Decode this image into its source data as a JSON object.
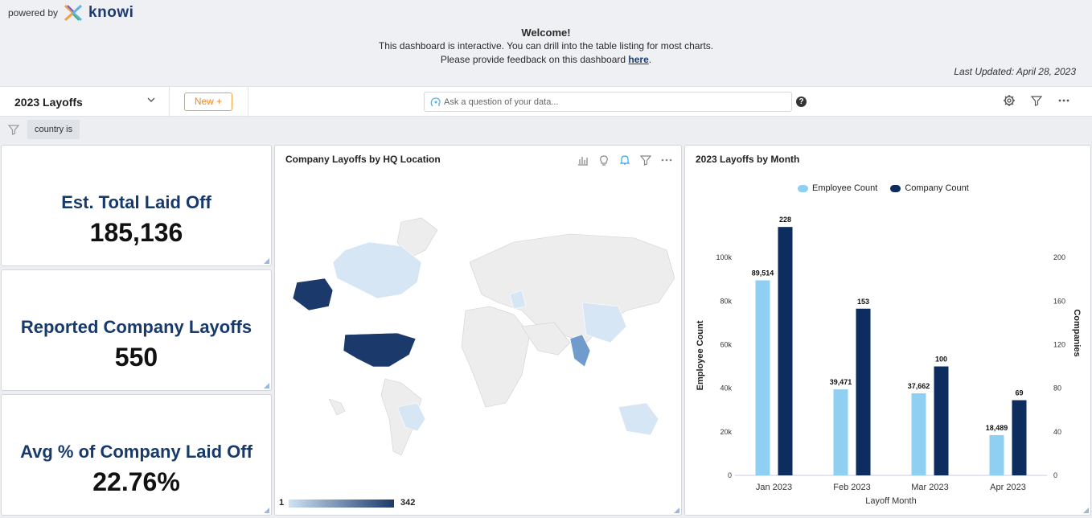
{
  "header": {
    "powered_by": "powered by",
    "brand": "knowi",
    "welcome_title": "Welcome!",
    "welcome_line1": "This dashboard is interactive. You can drill into the table listing for most charts.",
    "welcome_line2_prefix": "Please provide feedback on this dashboard",
    "welcome_link": "here",
    "welcome_line2_suffix": ".",
    "last_updated": "Last Updated: April 28, 2023"
  },
  "toolbar": {
    "dashboard_name": "2023 Layoffs",
    "new_button": "New +",
    "ask_placeholder": "Ask a question of your data...",
    "help": "?"
  },
  "filters": {
    "chip": "country is"
  },
  "kpis": [
    {
      "label": "Est. Total Laid Off",
      "value": "185,136"
    },
    {
      "label": "Reported Company Layoffs",
      "value": "550"
    },
    {
      "label": "Avg % of Company Laid Off",
      "value": "22.76%"
    }
  ],
  "map_panel": {
    "title": "Company Layoffs by HQ Location",
    "scale_min": "1",
    "scale_max": "342",
    "colors": {
      "low": "#cfe2f4",
      "mid": "#6f9ccd",
      "high": "#1b3a6b",
      "none": "#ededed"
    }
  },
  "chart_panel": {
    "title": "2023 Layoffs by Month"
  },
  "chart_data": {
    "type": "bar",
    "title": "2023 Layoffs by Month",
    "categories": [
      "Jan 2023",
      "Feb 2023",
      "Mar 2023",
      "Apr 2023"
    ],
    "xlabel": "Layoff Month",
    "ylabel": "Employee Count",
    "y2label": "Companies",
    "ylim": [
      0,
      110000
    ],
    "y2lim": [
      0,
      220
    ],
    "y_ticks": [
      "0",
      "20k",
      "40k",
      "60k",
      "80k",
      "100k"
    ],
    "y_tick_values": [
      0,
      20000,
      40000,
      60000,
      80000,
      100000
    ],
    "y2_ticks": [
      "0",
      "40",
      "80",
      "120",
      "160",
      "200"
    ],
    "y2_tick_values": [
      0,
      40,
      80,
      120,
      160,
      200
    ],
    "series": [
      {
        "name": "Employee Count",
        "axis": "left",
        "color": "#8fd0f2",
        "values": [
          89514,
          39471,
          37662,
          18489
        ],
        "labels": [
          "89,514",
          "39,471",
          "37,662",
          "18,489"
        ]
      },
      {
        "name": "Company Count",
        "axis": "right",
        "color": "#0c2d5e",
        "values": [
          228,
          153,
          100,
          69
        ],
        "labels": [
          "228",
          "153",
          "100",
          "69"
        ]
      }
    ],
    "legend_position": "top",
    "grid": false
  }
}
